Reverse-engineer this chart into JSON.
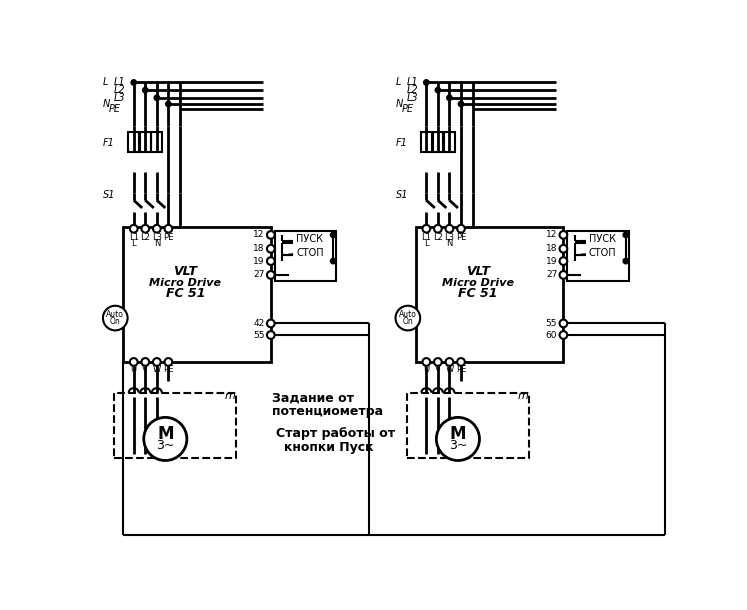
{
  "bg_color": "#ffffff",
  "line_color": "#000000",
  "pusk": "ПУСК",
  "stop": "СТОП",
  "vlt": "VLT",
  "micro_drive": "Micro Drive",
  "fc51": "FC 51",
  "auto": "Auto",
  "on": "On",
  "label_M": "М",
  "label_3tilde": "3~",
  "text1": "Задание от",
  "text2": "потенциометра",
  "text3": "Старт работы от",
  "text4": "кнопки Пуск"
}
